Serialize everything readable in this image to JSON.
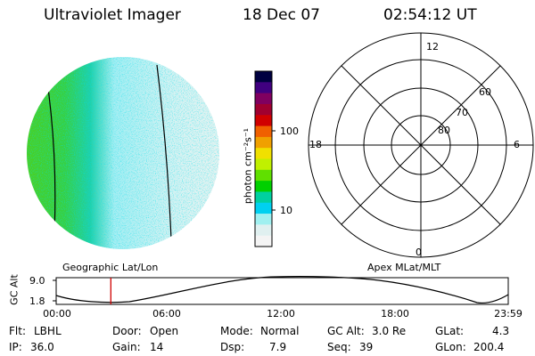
{
  "header": {
    "title": "Ultraviolet Imager",
    "date": "18 Dec 07",
    "time": "02:54:12 UT"
  },
  "colorbar": {
    "label": "photon cm⁻²s⁻¹",
    "ticks": [
      "100",
      "10"
    ],
    "colors": [
      "#000040",
      "#400080",
      "#800060",
      "#a00030",
      "#d00000",
      "#f06000",
      "#f0a000",
      "#f0e000",
      "#c0f000",
      "#60e000",
      "#00d000",
      "#00d0a0",
      "#00d0f0",
      "#a0f0f0",
      "#e0f0f0",
      "#f4f4f4"
    ]
  },
  "left_panel": {
    "caption": "Geographic Lat/Lon"
  },
  "polar": {
    "caption": "Apex MLat/MLT",
    "mlt_labels": {
      "top": "12",
      "left": "18",
      "right": "6",
      "bottom": "0"
    },
    "lat_labels": [
      "60",
      "70",
      "80"
    ]
  },
  "timeline": {
    "ylabel": "GC Alt",
    "yticks": [
      "9.0",
      "1.8"
    ],
    "xticks": [
      "00:00",
      "06:00",
      "12:00",
      "18:00",
      "23:59"
    ],
    "marker_time_hours": 2.9
  },
  "info": [
    [
      {
        "label": "Flt:",
        "value": "LBHL"
      },
      {
        "label": "IP:",
        "value": "36.0"
      }
    ],
    [
      {
        "label": "Door:",
        "value": "Open"
      },
      {
        "label": "Gain:",
        "value": "14"
      }
    ],
    [
      {
        "label": "Mode:",
        "value": "Normal"
      },
      {
        "label": "Dsp:",
        "value": "7.9"
      }
    ],
    [
      {
        "label": "GC Alt:",
        "value": "3.0 Re"
      },
      {
        "label": "Seq:",
        "value": "39"
      }
    ],
    [
      {
        "label": "GLat:",
        "value": "4.3"
      },
      {
        "label": "GLon:",
        "value": "200.4"
      }
    ]
  ]
}
